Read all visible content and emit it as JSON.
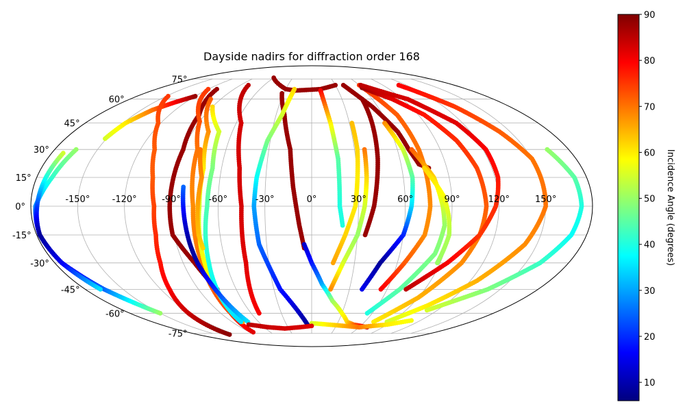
{
  "chart_data": {
    "type": "scatter",
    "projection": "mollweide",
    "title": "Dayside nadirs for diffraction order 168",
    "xlabel": "",
    "ylabel": "",
    "lon_ticks": [
      "-150°",
      "-120°",
      "-90°",
      "-60°",
      "-30°",
      "0°",
      "30°",
      "60°",
      "90°",
      "120°",
      "150°"
    ],
    "lat_ticks": [
      "75°",
      "60°",
      "45°",
      "30°",
      "15°",
      "0°",
      "-15°",
      "-30°",
      "-45°",
      "-60°",
      "-75°"
    ],
    "xlim": [
      -180,
      180
    ],
    "ylim": [
      -90,
      90
    ],
    "grid": true,
    "colormap": "jet",
    "colorbar": {
      "label": "Incidence Angle (degrees)",
      "range": [
        6,
        90
      ],
      "ticks": [
        "10",
        "20",
        "30",
        "40",
        "50",
        "60",
        "70",
        "80",
        "90"
      ]
    },
    "tracks": [
      {
        "x": [
          -151,
          -148,
          -140,
          -130,
          -120
        ],
        "y": [
          36,
          45,
          53,
          58,
          62
        ],
        "c": [
          55,
          60,
          70,
          80,
          88
        ]
      },
      {
        "x": [
          -165,
          -170,
          -177,
          -178,
          -175,
          -165,
          -150
        ],
        "y": [
          30,
          15,
          0,
          -15,
          -30,
          -45,
          -60
        ],
        "c": [
          50,
          42,
          28,
          10,
          12,
          25,
          50
        ]
      },
      {
        "x": [
          -172,
          -174,
          -176,
          -178,
          -175,
          -168
        ],
        "y": [
          28,
          15,
          0,
          -15,
          -30,
          -45
        ],
        "c": [
          55,
          40,
          22,
          8,
          15,
          35
        ]
      },
      {
        "x": [
          -148,
          -122,
          -110,
          -104,
          -101,
          -102,
          -106,
          -113,
          -122,
          -128,
          -130
        ],
        "y": [
          62,
          45,
          30,
          15,
          0,
          -15,
          -30,
          -45,
          -60,
          -72,
          -76
        ],
        "c": [
          75,
          73,
          72,
          72,
          74,
          76,
          78,
          80,
          84,
          88,
          89
        ]
      },
      {
        "x": [
          -110,
          -95,
          -90,
          -91,
          -91,
          -82,
          -75
        ],
        "y": [
          67,
          50,
          30,
          0,
          -15,
          -30,
          -45
        ],
        "c": [
          88,
          88,
          88,
          88,
          88,
          88,
          88
        ]
      },
      {
        "x": [
          -120,
          -90,
          -80,
          -76,
          -77,
          -80,
          -85
        ],
        "y": [
          67,
          46,
          30,
          0,
          -30,
          -60,
          -74
        ],
        "c": [
          75,
          73,
          70,
          68,
          70,
          74,
          82
        ]
      },
      {
        "x": [
          -100,
          -78,
          -72,
          -72,
          -75,
          -78
        ],
        "y": [
          60,
          40,
          20,
          0,
          -30,
          -66
        ],
        "c": [
          72,
          68,
          60,
          55,
          58,
          65
        ]
      },
      {
        "x": [
          -90,
          -70,
          -66,
          -67,
          -72,
          -80
        ],
        "y": [
          55,
          40,
          20,
          0,
          -30,
          -66
        ],
        "c": [
          62,
          55,
          48,
          44,
          40,
          35
        ]
      },
      {
        "x": [
          -78,
          -72,
          -73,
          -74,
          -73
        ],
        "y": [
          30,
          15,
          0,
          -15,
          -22
        ],
        "c": [
          70,
          68,
          66,
          64,
          62
        ]
      },
      {
        "x": [
          -83,
          -82,
          -81,
          -80,
          -72
        ],
        "y": [
          10,
          -5,
          -20,
          -30,
          -66
        ],
        "c": [
          25,
          15,
          8,
          10,
          35
        ]
      },
      {
        "x": [
          -80,
          -56,
          -48,
          -45,
          -46,
          -52
        ],
        "y": [
          70,
          45,
          20,
          0,
          -30,
          -60
        ],
        "c": [
          85,
          83,
          83,
          83,
          82,
          80
        ]
      },
      {
        "x": [
          -60,
          -40,
          -30,
          -18,
          10,
          30
        ],
        "y": [
          76,
          70,
          67,
          66,
          67,
          70
        ],
        "c": [
          88,
          88,
          88,
          88,
          88,
          88
        ]
      },
      {
        "x": [
          -32,
          -23,
          -15,
          -12,
          -8,
          -5
        ],
        "y": [
          64,
          50,
          30,
          10,
          -10,
          -22
        ],
        "c": [
          88,
          88,
          88,
          88,
          88,
          88
        ]
      },
      {
        "x": [
          -20,
          -25,
          -32,
          -36,
          -37,
          -35,
          -25,
          -5
        ],
        "y": [
          67,
          50,
          35,
          15,
          0,
          -20,
          -45,
          -68
        ],
        "c": [
          62,
          55,
          48,
          38,
          30,
          25,
          18,
          8
        ]
      },
      {
        "x": [
          -5,
          0,
          8,
          18,
          30,
          40,
          50,
          60,
          70
        ],
        "y": [
          -20,
          -30,
          -42,
          -52,
          -60,
          -66,
          -68,
          -69,
          -70
        ],
        "c": [
          12,
          18,
          30,
          50,
          58,
          62,
          70,
          78,
          85
        ]
      },
      {
        "x": [
          10,
          15,
          18,
          18,
          20
        ],
        "y": [
          66,
          45,
          25,
          0,
          -10
        ],
        "c": [
          80,
          60,
          45,
          40,
          40
        ]
      },
      {
        "x": [
          32,
          32,
          30,
          28,
          22,
          15
        ],
        "y": [
          45,
          30,
          15,
          0,
          -15,
          -30
        ],
        "c": [
          64,
          62,
          60,
          60,
          62,
          66
        ]
      },
      {
        "x": [
          37,
          36,
          34,
          30,
          22,
          15
        ],
        "y": [
          30,
          15,
          0,
          -15,
          -30,
          -45
        ],
        "c": [
          70,
          62,
          55,
          50,
          55,
          68
        ]
      },
      {
        "x": [
          50,
          48,
          45,
          40,
          35
        ],
        "y": [
          60,
          45,
          25,
          0,
          -15
        ],
        "c": [
          88,
          88,
          88,
          88,
          88
        ]
      },
      {
        "x": [
          40,
          55,
          65,
          68,
          72,
          78
        ],
        "y": [
          70,
          55,
          40,
          30,
          22,
          20
        ],
        "c": [
          88,
          88,
          88,
          88,
          88,
          88
        ]
      },
      {
        "x": [
          58,
          64,
          66,
          64,
          60,
          48,
          40
        ],
        "y": [
          45,
          30,
          15,
          0,
          -15,
          -30,
          -45
        ],
        "c": [
          68,
          55,
          45,
          35,
          20,
          8,
          15
        ]
      },
      {
        "x": [
          60,
          72,
          75,
          76,
          74,
          65,
          55
        ],
        "y": [
          70,
          50,
          30,
          0,
          -15,
          -30,
          -45
        ],
        "c": [
          75,
          72,
          70,
          68,
          68,
          72,
          80
        ]
      },
      {
        "x": [
          70,
          80,
          84,
          86,
          84,
          70,
          55
        ],
        "y": [
          30,
          15,
          0,
          -10,
          -25,
          -45,
          -60
        ],
        "c": [
          72,
          62,
          55,
          50,
          48,
          45,
          40
        ]
      },
      {
        "x": [
          75,
          85,
          88,
          90,
          88
        ],
        "y": [
          20,
          5,
          -5,
          -15,
          -30
        ],
        "c": [
          62,
          58,
          55,
          52,
          50
        ]
      },
      {
        "x": [
          60,
          80,
          95,
          105,
          110,
          112,
          110,
          105,
          90,
          70
        ],
        "y": [
          68,
          60,
          50,
          35,
          20,
          0,
          -15,
          -30,
          -50,
          -66
        ],
        "c": [
          88,
          82,
          78,
          76,
          74,
          72,
          70,
          68,
          65,
          60
        ]
      },
      {
        "x": [
          62,
          95,
          115,
          122,
          122,
          118,
          110,
          95,
          75
        ],
        "y": [
          70,
          60,
          45,
          30,
          15,
          0,
          -15,
          -30,
          -45
        ],
        "c": [
          85,
          83,
          82,
          80,
          78,
          76,
          75,
          80,
          85
        ]
      },
      {
        "x": [
          110,
          130,
          142,
          150,
          150,
          142,
          125,
          105,
          85
        ],
        "y": [
          70,
          55,
          40,
          25,
          0,
          -20,
          -40,
          -55,
          -66
        ],
        "c": [
          80,
          75,
          72,
          70,
          70,
          68,
          65,
          60,
          55
        ]
      },
      {
        "x": [
          165,
          172,
          173,
          170,
          160,
          140,
          110
        ],
        "y": [
          30,
          15,
          0,
          -15,
          -30,
          -45,
          -58
        ],
        "c": [
          50,
          45,
          40,
          38,
          42,
          48,
          55
        ]
      },
      {
        "x": [
          0,
          20,
          40,
          60,
          90,
          110
        ],
        "y": [
          -67,
          -68,
          -69,
          -70,
          -68,
          -65
        ],
        "c": [
          55,
          60,
          65,
          70,
          60,
          58
        ]
      },
      {
        "x": [
          -75,
          -55,
          -35,
          -15,
          0
        ],
        "y": [
          -68,
          -70,
          -71,
          -70,
          -69
        ],
        "c": [
          85,
          84,
          83,
          83,
          82
        ]
      }
    ]
  }
}
